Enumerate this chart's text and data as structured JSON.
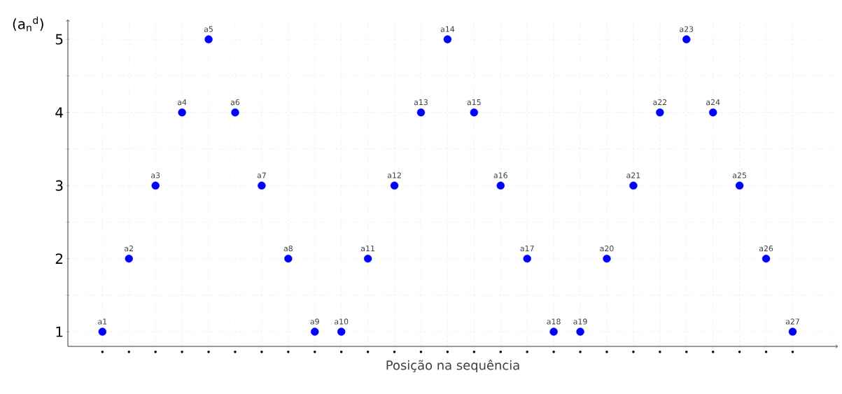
{
  "chart_data": {
    "type": "scatter",
    "xlabel": "Posição na sequência",
    "ylabel": "(a$_{n}$$^{d}$)",
    "categories": [
      "•",
      "•",
      "•",
      "•",
      "•",
      "•",
      "•",
      "•",
      "•",
      "•",
      "•",
      "•",
      "•",
      "•",
      "•",
      "•",
      "•",
      "•",
      "•",
      "•",
      "•",
      "•",
      "•",
      "•",
      "•",
      "•",
      "•"
    ],
    "series": [
      {
        "color": "#0000ff",
        "values": [
          1,
          2,
          3,
          4,
          5,
          4,
          3,
          2,
          1,
          1,
          2,
          3,
          4,
          5,
          4,
          3,
          2,
          1,
          1,
          2,
          3,
          4,
          5,
          4,
          3,
          2,
          1
        ],
        "value_labels": [
          "a1",
          "a2",
          "a3",
          "a4",
          "a5",
          "a6",
          "a7",
          "a8",
          "a9",
          "a10",
          "a11",
          "a12",
          "a13",
          "a14",
          "a15",
          "a16",
          "a17",
          "a18",
          "a19",
          "a20",
          "a21",
          "a22",
          "a23",
          "a24",
          "a25",
          "a26",
          "a27"
        ]
      }
    ],
    "ylim": [
      0.8,
      5.27
    ],
    "yticks": [
      1,
      {
        "value": 1.5,
        "label": null
      },
      2,
      {
        "value": 2.5,
        "label": null
      },
      3,
      {
        "value": 3.5,
        "label": null
      },
      4,
      {
        "value": 4.5,
        "label": null
      },
      5
    ],
    "grid": true,
    "marker": "circle"
  }
}
